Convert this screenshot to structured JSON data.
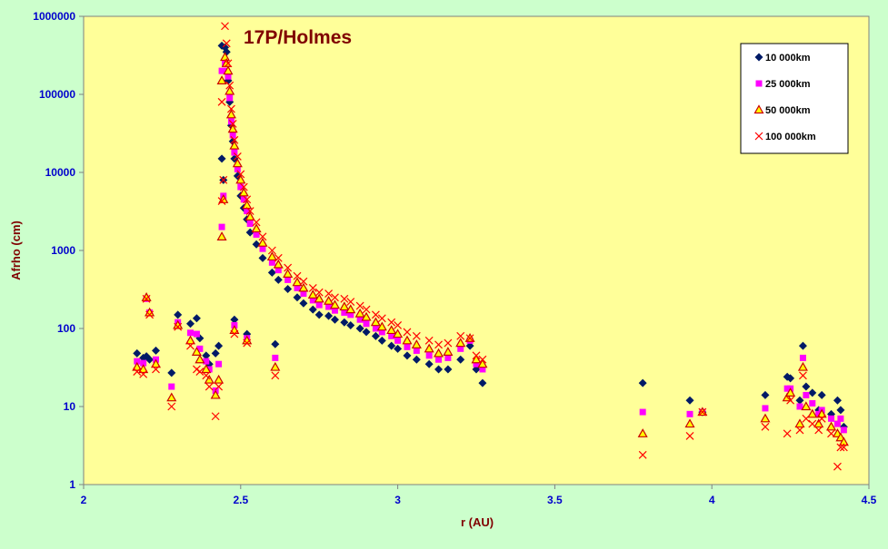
{
  "chart_data": {
    "type": "scatter",
    "title": "17P/Holmes",
    "xlabel": "r (AU)",
    "ylabel": "Afrho (cm)",
    "x_range": [
      2,
      4.5
    ],
    "x_ticks": [
      2,
      2.5,
      3,
      3.5,
      4,
      4.5
    ],
    "x_tick_labels": [
      "2",
      "2.5",
      "3",
      "3.5",
      "4",
      "4.5"
    ],
    "y_scale": "log",
    "y_range": [
      1,
      1000000
    ],
    "y_ticks": [
      1,
      10,
      100,
      1000,
      10000,
      100000,
      1000000
    ],
    "y_tick_labels": [
      "1",
      "10",
      "100",
      "1000",
      "10000",
      "100000",
      "1000000"
    ],
    "grid": false,
    "legend_position": "top-right",
    "series": [
      {
        "name": "10 000km",
        "marker": "diamond",
        "color": "#001a66",
        "x": [
          2.17,
          2.19,
          2.2,
          2.21,
          2.23,
          2.28,
          2.3,
          2.34,
          2.36,
          2.37,
          2.39,
          2.4,
          2.42,
          2.43,
          2.44,
          2.44,
          2.445,
          2.45,
          2.455,
          2.46,
          2.465,
          2.47,
          2.475,
          2.48,
          2.49,
          2.5,
          2.51,
          2.52,
          2.53,
          2.55,
          2.57,
          2.6,
          2.62,
          2.65,
          2.68,
          2.7,
          2.73,
          2.75,
          2.78,
          2.8,
          2.83,
          2.85,
          2.88,
          2.9,
          2.93,
          2.95,
          2.98,
          3.0,
          3.03,
          3.06,
          3.1,
          3.13,
          3.16,
          3.2,
          3.23,
          3.25,
          3.27,
          2.48,
          2.52,
          2.61,
          3.78,
          3.93,
          3.97,
          4.17,
          4.24,
          4.25,
          4.28,
          4.29,
          4.3,
          4.32,
          4.34,
          4.35,
          4.38,
          4.4,
          4.41,
          4.42
        ],
        "y": [
          48,
          42,
          44,
          40,
          52,
          27,
          150,
          115,
          135,
          75,
          45,
          35,
          48,
          60,
          15000,
          420000,
          8000,
          400000,
          350000,
          150000,
          80000,
          40000,
          25000,
          15000,
          9000,
          5000,
          3500,
          2500,
          1700,
          1200,
          800,
          520,
          420,
          320,
          250,
          210,
          175,
          150,
          145,
          130,
          120,
          110,
          100,
          90,
          80,
          70,
          60,
          55,
          45,
          40,
          35,
          30,
          30,
          40,
          60,
          30,
          20,
          130,
          85,
          63,
          20,
          12,
          8.5,
          14,
          24,
          23,
          12,
          60,
          18,
          15,
          9,
          14,
          8,
          12,
          9,
          5.5
        ]
      },
      {
        "name": "25 000km",
        "marker": "square",
        "color": "#ff00ff",
        "x": [
          2.17,
          2.19,
          2.2,
          2.21,
          2.23,
          2.28,
          2.3,
          2.34,
          2.36,
          2.37,
          2.39,
          2.4,
          2.42,
          2.43,
          2.44,
          2.44,
          2.445,
          2.45,
          2.455,
          2.46,
          2.465,
          2.47,
          2.475,
          2.48,
          2.49,
          2.5,
          2.51,
          2.52,
          2.53,
          2.55,
          2.57,
          2.6,
          2.62,
          2.65,
          2.68,
          2.7,
          2.73,
          2.75,
          2.78,
          2.8,
          2.83,
          2.85,
          2.88,
          2.9,
          2.93,
          2.95,
          2.98,
          3.0,
          3.03,
          3.06,
          3.1,
          3.13,
          3.16,
          3.2,
          3.23,
          3.25,
          3.27,
          2.48,
          2.52,
          2.61,
          3.78,
          3.93,
          3.97,
          4.17,
          4.24,
          4.25,
          4.28,
          4.29,
          4.3,
          4.32,
          4.34,
          4.35,
          4.38,
          4.4,
          4.41,
          4.42
        ],
        "y": [
          38,
          36,
          240,
          160,
          40,
          18,
          120,
          88,
          85,
          55,
          38,
          30,
          16,
          35,
          2000,
          200000,
          5000,
          250000,
          200000,
          170000,
          90000,
          45000,
          30000,
          18000,
          11000,
          6500,
          4500,
          3200,
          2200,
          1600,
          1050,
          700,
          560,
          420,
          330,
          280,
          230,
          200,
          190,
          170,
          160,
          150,
          130,
          115,
          100,
          90,
          80,
          70,
          58,
          52,
          45,
          40,
          42,
          55,
          70,
          35,
          30,
          110,
          75,
          42,
          8.5,
          8,
          8.5,
          9.5,
          17,
          17,
          10,
          42,
          14,
          11,
          8,
          9,
          7,
          6,
          7,
          5
        ]
      },
      {
        "name": "50 000km",
        "marker": "triangle",
        "color": "#cc0000",
        "x": [
          2.17,
          2.19,
          2.2,
          2.21,
          2.23,
          2.28,
          2.3,
          2.34,
          2.36,
          2.37,
          2.39,
          2.4,
          2.42,
          2.43,
          2.44,
          2.44,
          2.445,
          2.45,
          2.455,
          2.46,
          2.465,
          2.47,
          2.475,
          2.48,
          2.49,
          2.5,
          2.51,
          2.52,
          2.53,
          2.55,
          2.57,
          2.6,
          2.62,
          2.65,
          2.68,
          2.7,
          2.73,
          2.75,
          2.78,
          2.8,
          2.83,
          2.85,
          2.88,
          2.9,
          2.93,
          2.95,
          2.98,
          3.0,
          3.03,
          3.06,
          3.1,
          3.13,
          3.16,
          3.2,
          3.23,
          3.25,
          3.27,
          2.48,
          2.52,
          2.61,
          3.78,
          3.93,
          3.97,
          4.17,
          4.24,
          4.25,
          4.28,
          4.29,
          4.3,
          4.32,
          4.34,
          4.35,
          4.38,
          4.4,
          4.41,
          4.42
        ],
        "y": [
          32,
          30,
          250,
          160,
          35,
          13,
          110,
          70,
          50,
          40,
          30,
          22,
          14,
          22,
          1500,
          150000,
          4500,
          300000,
          250000,
          200000,
          110000,
          55000,
          36000,
          22000,
          13000,
          8000,
          5500,
          3800,
          2700,
          1900,
          1250,
          830,
          660,
          500,
          390,
          330,
          270,
          240,
          225,
          200,
          190,
          175,
          155,
          140,
          120,
          105,
          95,
          85,
          70,
          62,
          55,
          48,
          50,
          65,
          75,
          40,
          35,
          95,
          70,
          32,
          4.5,
          6,
          8.5,
          7,
          13,
          15,
          6,
          32,
          10,
          8,
          6,
          8,
          5.5,
          4.5,
          4,
          3.5
        ]
      },
      {
        "name": "100 000km",
        "marker": "x",
        "color": "#ff0000",
        "x": [
          2.17,
          2.19,
          2.2,
          2.21,
          2.23,
          2.28,
          2.3,
          2.34,
          2.36,
          2.37,
          2.39,
          2.4,
          2.42,
          2.43,
          2.44,
          2.44,
          2.445,
          2.45,
          2.455,
          2.46,
          2.465,
          2.47,
          2.475,
          2.48,
          2.49,
          2.5,
          2.51,
          2.52,
          2.53,
          2.55,
          2.57,
          2.6,
          2.62,
          2.65,
          2.68,
          2.7,
          2.73,
          2.75,
          2.78,
          2.8,
          2.83,
          2.85,
          2.88,
          2.9,
          2.93,
          2.95,
          2.98,
          3.0,
          3.03,
          3.06,
          3.1,
          3.13,
          3.16,
          3.2,
          3.23,
          3.25,
          3.27,
          2.48,
          2.52,
          2.61,
          3.78,
          3.93,
          3.97,
          4.17,
          4.24,
          4.25,
          4.28,
          4.29,
          4.3,
          4.32,
          4.34,
          4.35,
          4.38,
          4.4,
          4.41,
          4.42
        ],
        "y": [
          28,
          26,
          240,
          150,
          30,
          10,
          105,
          60,
          30,
          28,
          25,
          18,
          7.5,
          18,
          4300,
          80000,
          8000,
          750000,
          450000,
          250000,
          130000,
          65000,
          42000,
          26000,
          16000,
          9500,
          6500,
          4500,
          3200,
          2300,
          1500,
          1000,
          800,
          600,
          470,
          400,
          330,
          290,
          280,
          250,
          240,
          220,
          195,
          175,
          150,
          135,
          120,
          110,
          90,
          80,
          70,
          62,
          65,
          80,
          75,
          45,
          40,
          85,
          65,
          25,
          2.4,
          4.2,
          8.5,
          5.5,
          4.5,
          12,
          5,
          25,
          7,
          6,
          5,
          7,
          4.5,
          1.7,
          3,
          3
        ]
      }
    ]
  }
}
